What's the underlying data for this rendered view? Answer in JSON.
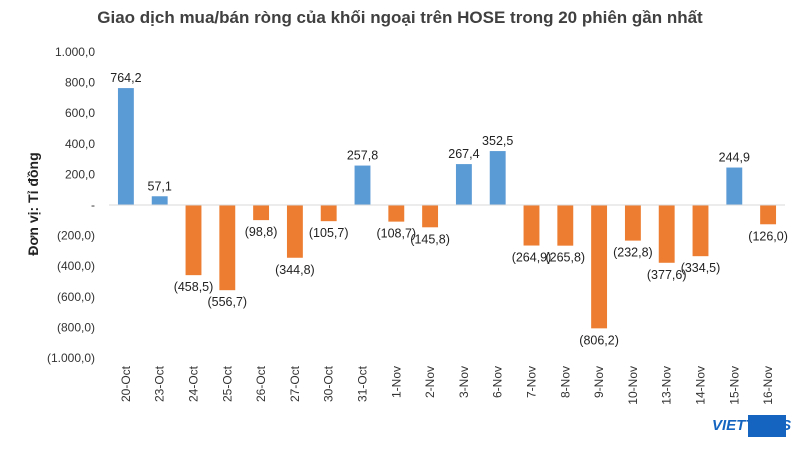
{
  "chart_data": {
    "type": "bar",
    "title": "Giao dịch mua/bán ròng của khối ngoại trên HOSE trong 20 phiên gần nhất",
    "ylabel": "Đơn vị: Tỉ đồng",
    "xlabel": "",
    "ylim": [
      -1000,
      1000
    ],
    "yticks": [
      1000,
      800,
      600,
      400,
      200,
      0,
      -200,
      -400,
      -600,
      -800,
      -1000
    ],
    "ytick_labels": [
      "1.000,0",
      "800,0",
      "600,0",
      "400,0",
      "200,0",
      "-",
      "(200,0)",
      "(400,0)",
      "(600,0)",
      "(800,0)",
      "(1.000,0)"
    ],
    "categories": [
      "20-Oct",
      "23-Oct",
      "24-Oct",
      "25-Oct",
      "26-Oct",
      "27-Oct",
      "30-Oct",
      "31-Oct",
      "1-Nov",
      "2-Nov",
      "3-Nov",
      "6-Nov",
      "7-Nov",
      "8-Nov",
      "9-Nov",
      "10-Nov",
      "13-Nov",
      "14-Nov",
      "15-Nov",
      "16-Nov"
    ],
    "values": [
      764.2,
      57.1,
      -458.5,
      -556.7,
      -98.8,
      -344.8,
      -105.7,
      257.8,
      -108.7,
      -145.8,
      267.4,
      352.5,
      -264.9,
      -265.8,
      -806.2,
      -232.8,
      -377.6,
      -334.5,
      244.9,
      -126.0
    ],
    "data_labels": [
      "764,2",
      "57,1",
      "(458,5)",
      "(556,7)",
      "(98,8)",
      "(344,8)",
      "(105,7)",
      "257,8",
      "(108,7)",
      "(145,8)",
      "267,4",
      "352,5",
      "(264,9)",
      "(265,8)",
      "(806,2)",
      "(232,8)",
      "(377,6)",
      "(334,5)",
      "244,9",
      "(126,0)"
    ],
    "colors": {
      "positive": "#5b9bd5",
      "negative": "#ed7d31"
    },
    "grid": false,
    "legend": "none"
  },
  "watermark": {
    "text": "VIETTIMES",
    "color": "#1565c0"
  }
}
